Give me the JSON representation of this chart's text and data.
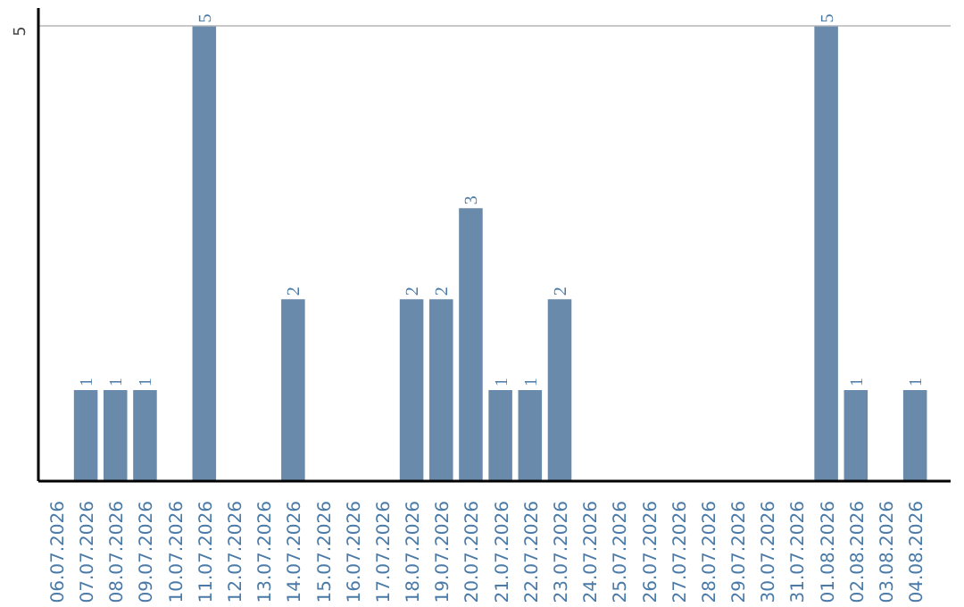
{
  "chart_data": {
    "type": "bar",
    "categories": [
      "06.07.2026",
      "07.07.2026",
      "08.07.2026",
      "09.07.2026",
      "10.07.2026",
      "11.07.2026",
      "12.07.2026",
      "13.07.2026",
      "14.07.2026",
      "15.07.2026",
      "16.07.2026",
      "17.07.2026",
      "18.07.2026",
      "19.07.2026",
      "20.07.2026",
      "21.07.2026",
      "22.07.2026",
      "23.07.2026",
      "24.07.2026",
      "25.07.2026",
      "26.07.2026",
      "27.07.2026",
      "28.07.2026",
      "29.07.2026",
      "30.07.2026",
      "31.07.2026",
      "01.08.2026",
      "02.08.2026",
      "03.08.2026",
      "04.08.2026"
    ],
    "values": [
      0,
      1,
      1,
      1,
      0,
      5,
      0,
      0,
      2,
      0,
      0,
      0,
      2,
      2,
      3,
      1,
      1,
      2,
      0,
      0,
      0,
      0,
      0,
      0,
      0,
      0,
      5,
      1,
      0,
      1
    ],
    "value_labels": [
      null,
      "1",
      "1",
      "1",
      null,
      "5",
      null,
      null,
      "2",
      null,
      null,
      null,
      "2",
      "2",
      "3",
      "1",
      "1",
      "2",
      null,
      null,
      null,
      null,
      null,
      null,
      null,
      null,
      "5",
      "1",
      null,
      "1"
    ],
    "color": "#6a8aab",
    "ylim": [
      0,
      5.2
    ],
    "yticks": [
      5
    ],
    "grid": "y"
  }
}
